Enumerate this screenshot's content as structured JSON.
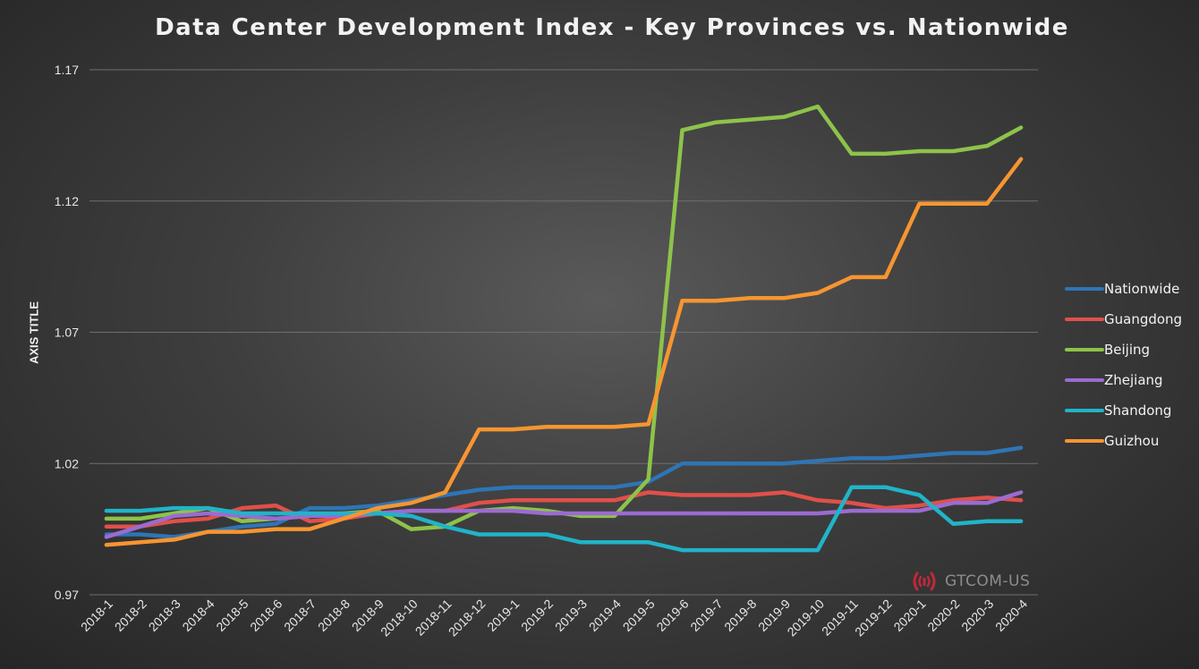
{
  "chart_data": {
    "type": "line",
    "title": "Data Center Development Index - Key Provinces vs. Nationwide",
    "ylabel": "AXIS TITLE",
    "xlabel": "",
    "ylim": [
      0.97,
      1.17
    ],
    "yticks": [
      "0.97",
      "1.02",
      "1.07",
      "1.12",
      "1.17"
    ],
    "grid": true,
    "legend_position": "right",
    "categories": [
      "2018-1",
      "2018-2",
      "2018-3",
      "2018-4",
      "2018-5",
      "2018-6",
      "2018-7",
      "2018-8",
      "2018-9",
      "2018-10",
      "2018-11",
      "2018-12",
      "2019-1",
      "2019-2",
      "2019-3",
      "2019-4",
      "2019-5",
      "2019-6",
      "2019-7",
      "2019-8",
      "2019-9",
      "2019-10",
      "2019-11",
      "2019-12",
      "2020-1",
      "2020-2",
      "2020-3",
      "2020-4"
    ],
    "series": [
      {
        "name": "Nationwide",
        "color": "#2e75b6",
        "values": [
          0.993,
          0.993,
          0.992,
          0.994,
          0.996,
          0.997,
          1.003,
          1.003,
          1.004,
          1.006,
          1.008,
          1.01,
          1.011,
          1.011,
          1.011,
          1.011,
          1.013,
          1.02,
          1.02,
          1.02,
          1.02,
          1.021,
          1.022,
          1.022,
          1.023,
          1.024,
          1.024,
          1.026
        ]
      },
      {
        "name": "Guangdong",
        "color": "#e0504a",
        "values": [
          0.996,
          0.996,
          0.998,
          0.999,
          1.003,
          1.004,
          0.998,
          0.999,
          1.001,
          1.002,
          1.002,
          1.005,
          1.006,
          1.006,
          1.006,
          1.006,
          1.009,
          1.008,
          1.008,
          1.008,
          1.009,
          1.006,
          1.005,
          1.003,
          1.004,
          1.006,
          1.007,
          1.006
        ]
      },
      {
        "name": "Beijing",
        "color": "#8dc34a",
        "values": [
          0.999,
          0.999,
          1.001,
          1.003,
          0.998,
          0.999,
          1.0,
          1.001,
          1.002,
          0.995,
          0.996,
          1.002,
          1.003,
          1.002,
          1.0,
          1.0,
          1.014,
          1.147,
          1.15,
          1.151,
          1.152,
          1.156,
          1.138,
          1.138,
          1.139,
          1.139,
          1.141,
          1.148
        ]
      },
      {
        "name": "Zhejiang",
        "color": "#9b6bd1",
        "values": [
          0.992,
          0.996,
          1.0,
          1.001,
          1.0,
          0.999,
          1.0,
          1.0,
          1.001,
          1.002,
          1.002,
          1.002,
          1.002,
          1.001,
          1.001,
          1.001,
          1.001,
          1.001,
          1.001,
          1.001,
          1.001,
          1.001,
          1.002,
          1.002,
          1.002,
          1.005,
          1.005,
          1.009
        ]
      },
      {
        "name": "Shandong",
        "color": "#20b4c8",
        "values": [
          1.002,
          1.002,
          1.003,
          1.003,
          1.001,
          1.001,
          1.001,
          1.001,
          1.001,
          1.0,
          0.996,
          0.993,
          0.993,
          0.993,
          0.99,
          0.99,
          0.99,
          0.987,
          0.987,
          0.987,
          0.987,
          0.987,
          1.011,
          1.011,
          1.008,
          0.997,
          0.998,
          0.998
        ]
      },
      {
        "name": "Guizhou",
        "color": "#f79530",
        "values": [
          0.989,
          0.99,
          0.991,
          0.994,
          0.994,
          0.995,
          0.995,
          0.999,
          1.003,
          1.005,
          1.009,
          1.033,
          1.033,
          1.034,
          1.034,
          1.034,
          1.035,
          1.082,
          1.082,
          1.083,
          1.083,
          1.085,
          1.091,
          1.091,
          1.119,
          1.119,
          1.119,
          1.136
        ]
      }
    ]
  },
  "watermark": {
    "text": "GTCOM-US",
    "icon": "signal-broadcast-icon",
    "icon_color": "#c0283a"
  }
}
